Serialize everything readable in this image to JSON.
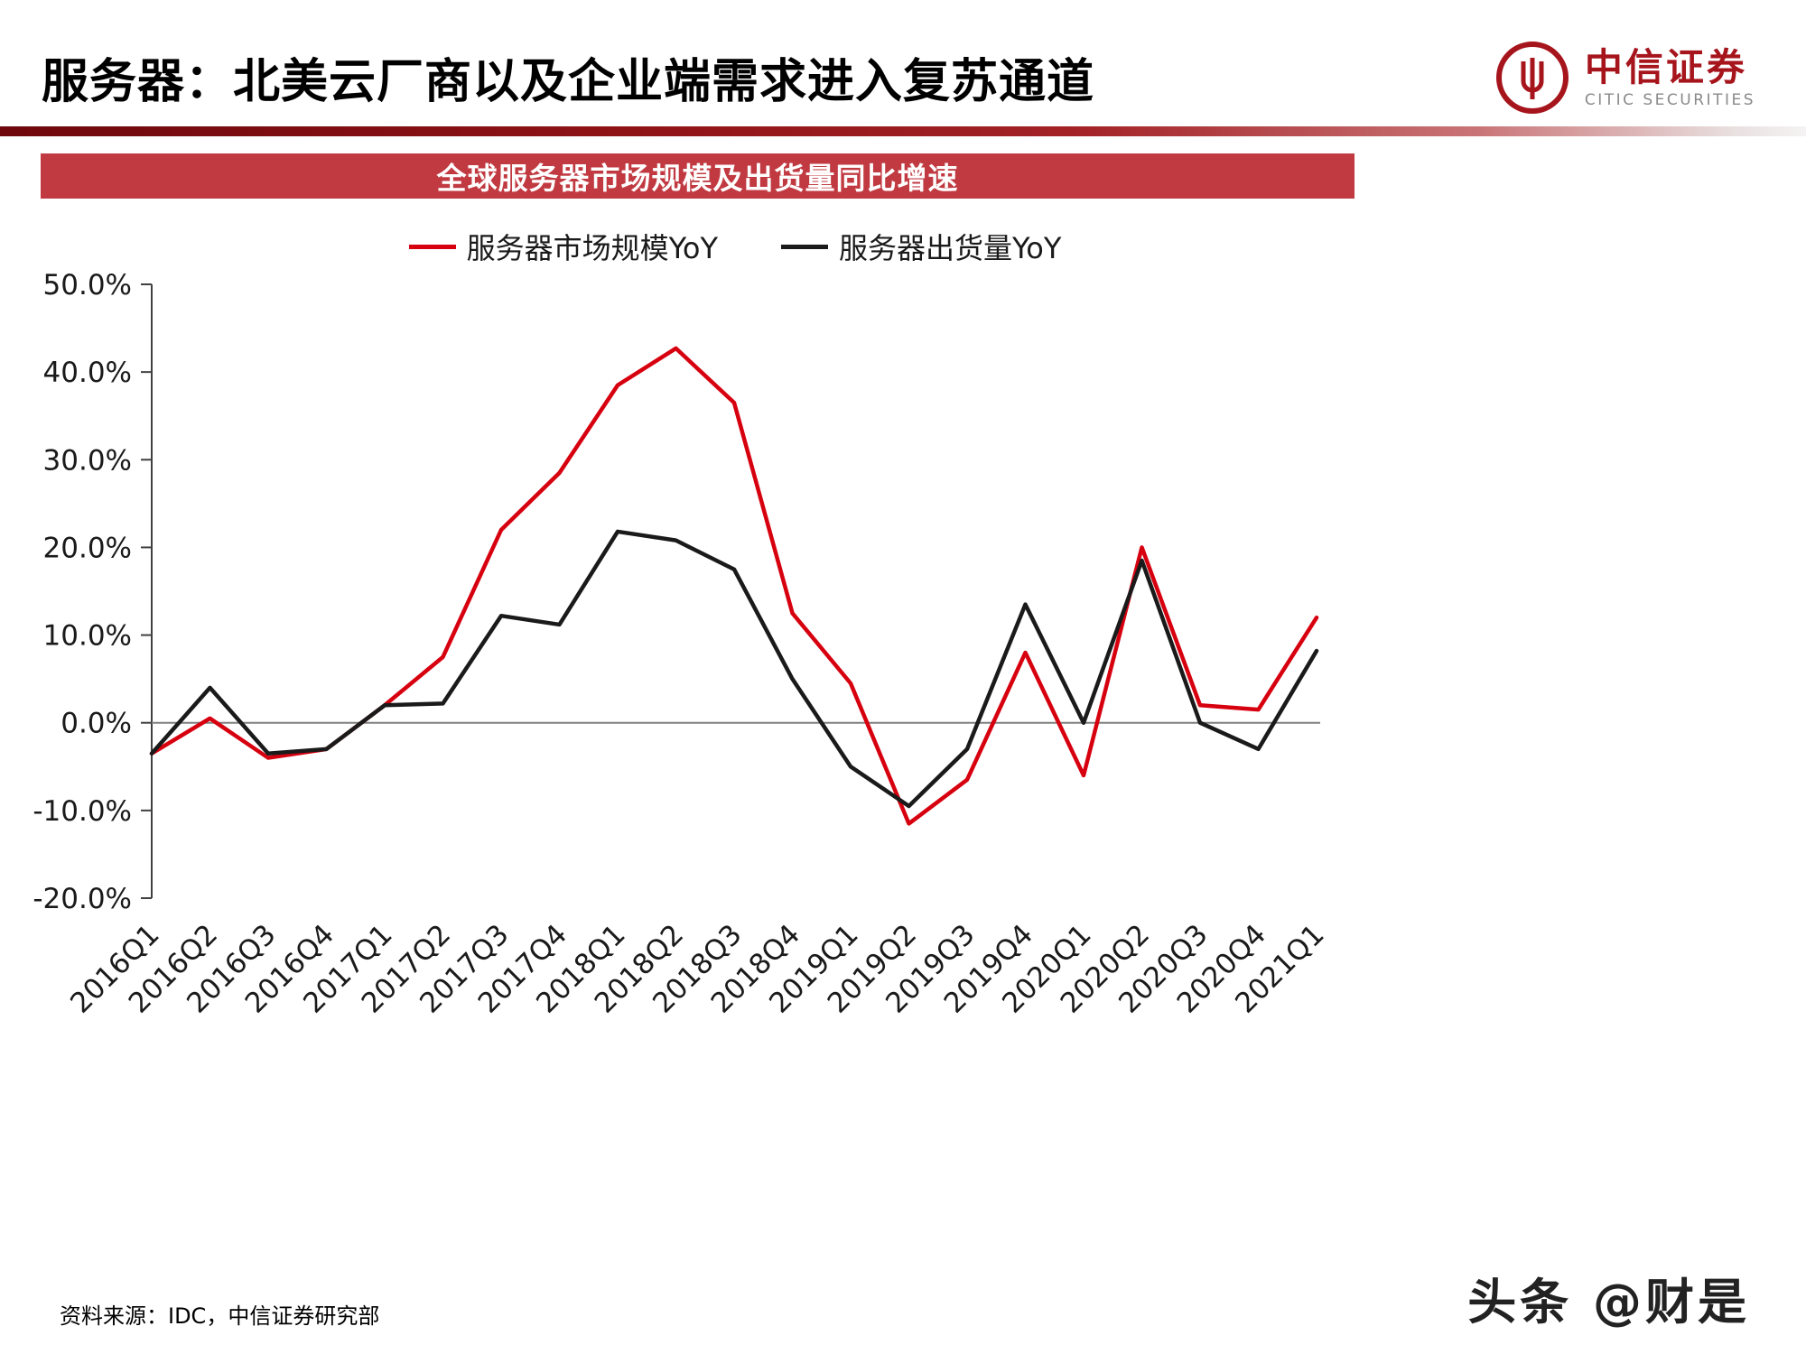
{
  "header": {
    "title": "服务器：北美云厂商以及企业端需求进入复苏通道",
    "logo": {
      "cn": "中信证券",
      "en": "CITIC SECURITIES",
      "color": "#a6141c"
    }
  },
  "banner": {
    "text": "全球服务器市场规模及出货量同比增速",
    "bg": "#c13a41"
  },
  "legend": [
    {
      "label": "服务器市场规模YoY",
      "color": "#d7000f"
    },
    {
      "label": "服务器出货量YoY",
      "color": "#1a1a1a"
    }
  ],
  "chart_data": {
    "type": "line",
    "title": "全球服务器市场规模及出货量同比增速",
    "categories": [
      "2016Q1",
      "2016Q2",
      "2016Q3",
      "2016Q4",
      "2017Q1",
      "2017Q2",
      "2017Q3",
      "2017Q4",
      "2018Q1",
      "2018Q2",
      "2018Q3",
      "2018Q4",
      "2019Q1",
      "2019Q2",
      "2019Q3",
      "2019Q4",
      "2020Q1",
      "2020Q2",
      "2020Q3",
      "2020Q4",
      "2021Q1"
    ],
    "series": [
      {
        "name": "服务器市场规模YoY",
        "color": "#d7000f",
        "values": [
          -3.5,
          0.5,
          -4.0,
          -3.0,
          2.0,
          7.5,
          22.0,
          28.5,
          38.5,
          42.7,
          36.5,
          12.5,
          4.5,
          -11.5,
          -6.5,
          8.0,
          -6.0,
          20.0,
          2.0,
          1.5,
          12.0
        ]
      },
      {
        "name": "服务器出货量YoY",
        "color": "#1a1a1a",
        "values": [
          -3.5,
          4.0,
          -3.5,
          -3.0,
          2.0,
          2.2,
          12.2,
          11.2,
          21.8,
          20.8,
          17.5,
          5.0,
          -5.0,
          -9.5,
          -3.0,
          13.5,
          0.0,
          18.5,
          0.0,
          -3.0,
          8.2
        ]
      }
    ],
    "ylim": [
      -20,
      50
    ],
    "ytick_step": 10,
    "ytick_labels": [
      "50.0%",
      "40.0%",
      "30.0%",
      "20.0%",
      "10.0%",
      "0.0%",
      "-10.0%",
      "-20.0%"
    ],
    "xlabel": "",
    "ylabel": "",
    "grid": false,
    "legend_position": "top",
    "axis_color": "#404040",
    "zero_line_color": "#808080",
    "tick_label_color": "#1a1a1a"
  },
  "footer": {
    "source": "资料来源：IDC，中信证券研究部",
    "watermark": "头条 @财是"
  }
}
